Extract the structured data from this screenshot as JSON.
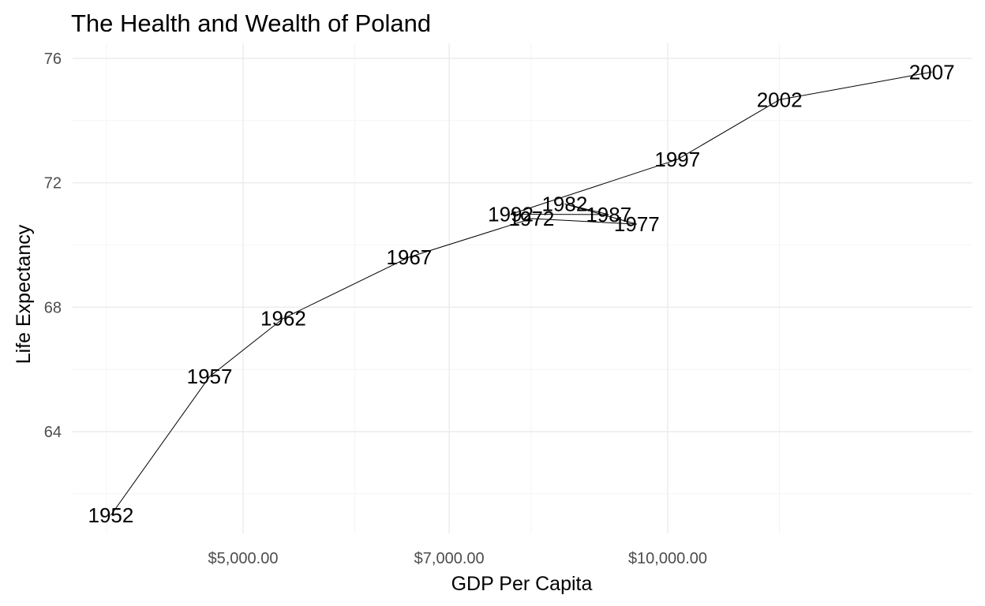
{
  "chart_data": {
    "type": "line",
    "title": "The Health and Wealth of Poland",
    "xlabel": "GDP Per Capita",
    "ylabel": "Life Expectancy",
    "x_scale": "log",
    "xlim": [
      3900,
      13300
    ],
    "ylim": [
      60.8,
      76.0
    ],
    "x_ticks": [
      {
        "value": 5000,
        "label": "$5,000.00"
      },
      {
        "value": 7000,
        "label": "$7,000.00"
      },
      {
        "value": 10000,
        "label": "$10,000.00"
      }
    ],
    "x_minor_ticks": [
      4000,
      6000,
      8000,
      12000
    ],
    "y_ticks": [
      {
        "value": 64,
        "label": "64"
      },
      {
        "value": 68,
        "label": "68"
      },
      {
        "value": 72,
        "label": "72"
      },
      {
        "value": 76,
        "label": "76"
      }
    ],
    "y_minor_ticks": [
      62,
      66,
      70,
      74
    ],
    "grid": true,
    "series": [
      {
        "points": [
          {
            "x": 4029,
            "y": 61.31,
            "label": "1952"
          },
          {
            "x": 4734,
            "y": 65.77,
            "label": "1957"
          },
          {
            "x": 5339,
            "y": 67.64,
            "label": "1962"
          },
          {
            "x": 6557,
            "y": 69.61,
            "label": "1967"
          },
          {
            "x": 8006,
            "y": 70.85,
            "label": "1972"
          },
          {
            "x": 9508,
            "y": 70.67,
            "label": "1977"
          },
          {
            "x": 8451,
            "y": 71.32,
            "label": "1982"
          },
          {
            "x": 9082,
            "y": 70.98,
            "label": "1987"
          },
          {
            "x": 7739,
            "y": 70.99,
            "label": "1992"
          },
          {
            "x": 10160,
            "y": 72.75,
            "label": "1997"
          },
          {
            "x": 12002,
            "y": 74.67,
            "label": "2002"
          },
          {
            "x": 15390,
            "y": 75.56,
            "label": "2007"
          }
        ]
      }
    ]
  }
}
